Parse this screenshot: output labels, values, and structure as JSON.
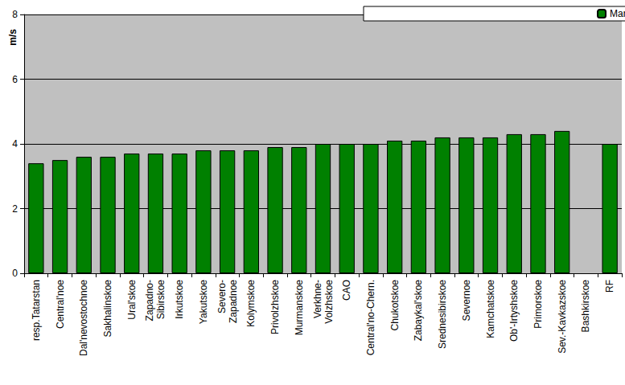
{
  "chart_data": {
    "type": "bar",
    "y_label": "m/s",
    "categories": [
      "resp.Tatarstan",
      "Central'noe",
      "Dal'nevostochnoe",
      "Sakhalinskoe",
      "Ural'skoe",
      "Zapadno-\nSibirskoe",
      "Irkutskoe",
      "Yakutskoe",
      "Severo-\nZapadnoe",
      "Kolymskoe",
      "Privolzhskoe",
      "Murmanskoe",
      "Verkhne-\nVolzhskoe",
      "CAO",
      "Central'no-Chern.",
      "Chukotskoe",
      "Zabaykal'skoe",
      "Srednesibirskoe",
      "Severnoe",
      "Kamchatskoe",
      "Ob'-Irtyshskoe",
      "Primorskoe",
      "Sev.-Kavkazskoe",
      "Bashkirskoe",
      "RF"
    ],
    "series": [
      {
        "name": "March",
        "color": "#008000",
        "values": [
          3.4,
          3.5,
          3.6,
          3.6,
          3.7,
          3.7,
          3.7,
          3.8,
          3.8,
          3.8,
          3.9,
          3.9,
          4.0,
          4.0,
          4.0,
          4.1,
          4.1,
          4.2,
          4.2,
          4.2,
          4.3,
          4.3,
          4.4,
          null,
          4.0
        ]
      }
    ],
    "ylim": [
      0,
      8
    ],
    "yticks": [
      0,
      2,
      4,
      6,
      8
    ],
    "grid": true,
    "legend": "top"
  }
}
